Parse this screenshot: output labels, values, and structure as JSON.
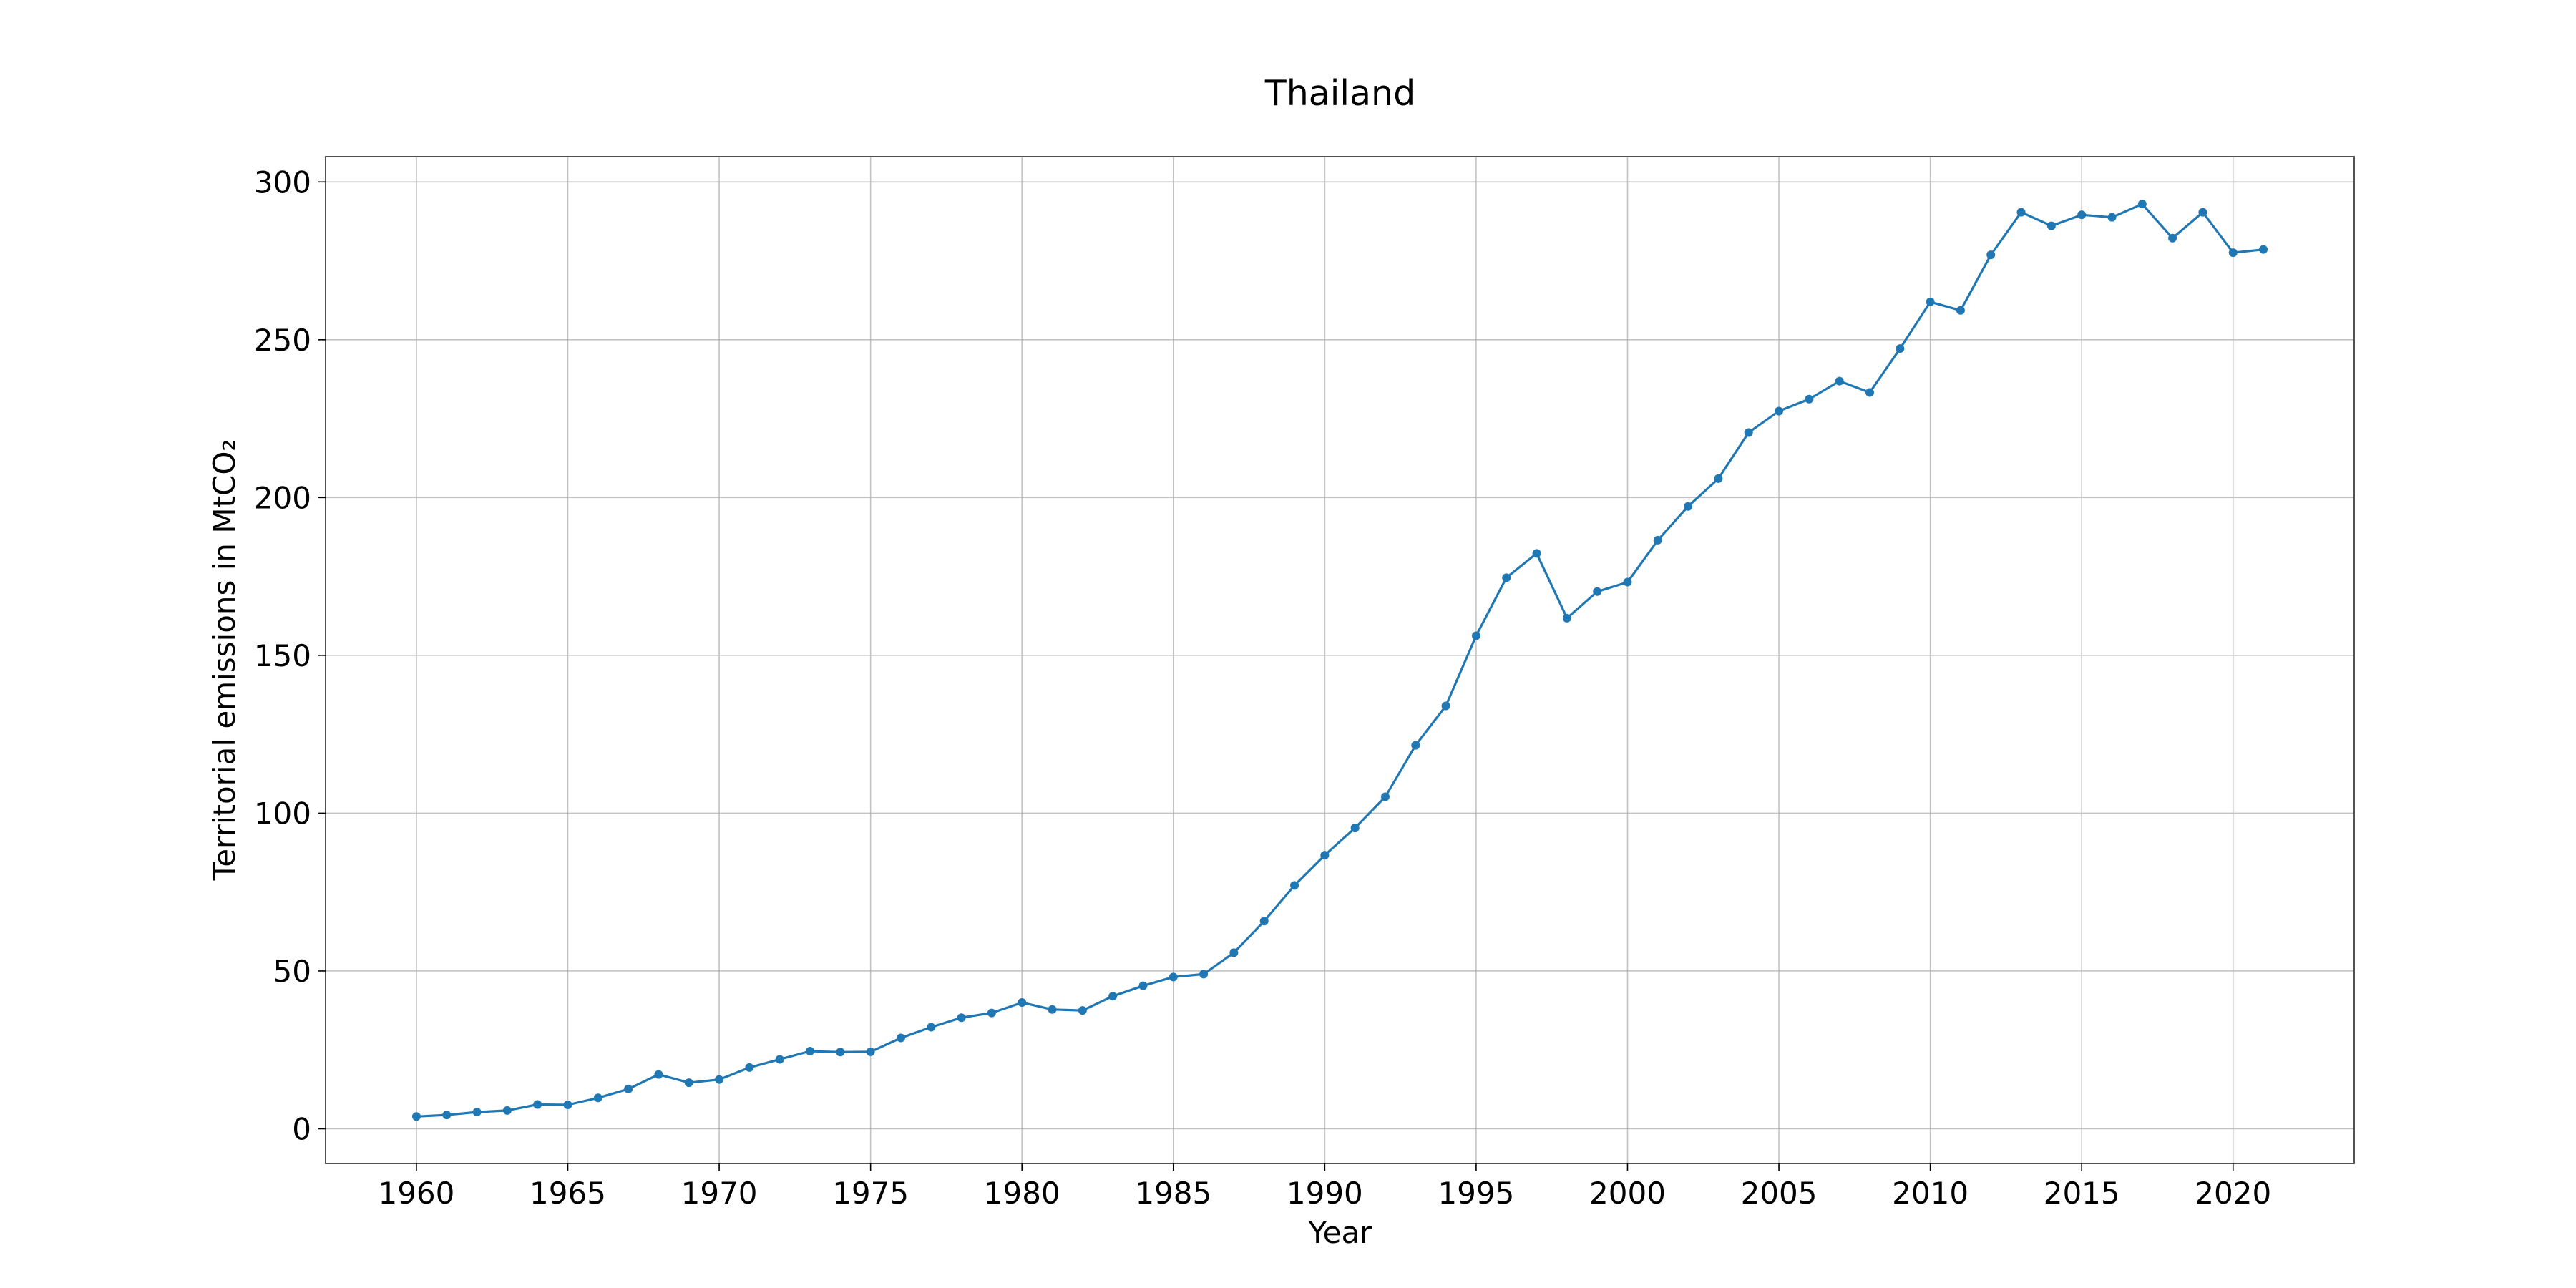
{
  "chart_data": {
    "type": "line",
    "title": "Thailand",
    "xlabel": "Year",
    "ylabel": "Territorial emissions in MtCO₂",
    "xlim": [
      1957,
      2024
    ],
    "ylim": [
      -11,
      308
    ],
    "xticks": [
      1960,
      1965,
      1970,
      1975,
      1980,
      1985,
      1990,
      1995,
      2000,
      2005,
      2010,
      2015,
      2020
    ],
    "yticks": [
      0,
      50,
      100,
      150,
      200,
      250,
      300
    ],
    "grid": true,
    "marker": "circle",
    "color": "#1f77b4",
    "x": [
      1960,
      1961,
      1962,
      1963,
      1964,
      1965,
      1966,
      1967,
      1968,
      1969,
      1970,
      1971,
      1972,
      1973,
      1974,
      1975,
      1976,
      1977,
      1978,
      1979,
      1980,
      1981,
      1982,
      1983,
      1984,
      1985,
      1986,
      1987,
      1988,
      1989,
      1990,
      1991,
      1992,
      1993,
      1994,
      1995,
      1996,
      1997,
      1998,
      1999,
      2000,
      2001,
      2002,
      2003,
      2004,
      2005,
      2006,
      2007,
      2008,
      2009,
      2010,
      2011,
      2012,
      2013,
      2014,
      2015,
      2016,
      2017,
      2018,
      2019,
      2020,
      2021
    ],
    "values": [
      3.9,
      4.4,
      5.3,
      5.8,
      7.7,
      7.6,
      9.8,
      12.6,
      17.2,
      14.6,
      15.6,
      19.4,
      22.0,
      24.6,
      24.3,
      24.4,
      28.8,
      32.2,
      35.2,
      36.7,
      40.0,
      37.8,
      37.5,
      42.0,
      45.3,
      48.1,
      49.0,
      55.8,
      65.8,
      77.1,
      86.7,
      95.3,
      105.2,
      121.5,
      134.0,
      156.2,
      174.6,
      182.3,
      161.8,
      170.2,
      173.2,
      186.5,
      197.2,
      206.0,
      220.6,
      227.4,
      231.2,
      236.9,
      233.3,
      247.2,
      262.0,
      259.3,
      276.9,
      290.4,
      286.1,
      289.6,
      288.8,
      293.0,
      282.2,
      290.4,
      277.6,
      278.6
    ]
  }
}
